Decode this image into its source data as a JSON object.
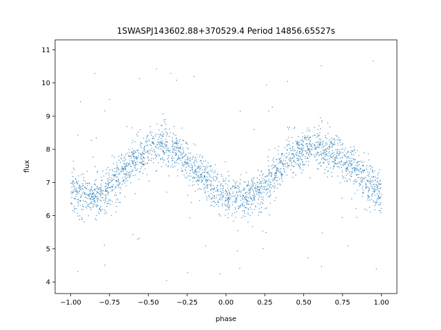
{
  "chart_data": {
    "type": "scatter",
    "title": "1SWASPJ143602.88+370529.4 Period 14856.65527s",
    "xlabel": "phase",
    "ylabel": "flux",
    "xlim": [
      -1.1,
      1.1
    ],
    "ylim": [
      3.65,
      11.3
    ],
    "xticks": [
      -1.0,
      -0.75,
      -0.5,
      -0.25,
      0.0,
      0.25,
      0.5,
      0.75,
      1.0
    ],
    "xtick_labels": [
      "−1.00",
      "−0.75",
      "−0.50",
      "−0.25",
      "0.00",
      "0.25",
      "0.50",
      "0.75",
      "1.00"
    ],
    "yticks": [
      4,
      5,
      6,
      7,
      8,
      9,
      10,
      11
    ],
    "ytick_labels": [
      "4",
      "5",
      "6",
      "7",
      "8",
      "9",
      "10",
      "11"
    ],
    "grid": false,
    "legend": false,
    "marker_color": "#1f77b4",
    "series": [
      {
        "phase": [
          -1.0,
          -0.9,
          -0.8,
          -0.7,
          -0.6,
          -0.5,
          -0.4,
          -0.3,
          -0.2,
          -0.1,
          0.0,
          0.1,
          0.2,
          0.3,
          0.4,
          0.5,
          0.6,
          0.7,
          0.8,
          0.9,
          1.0
        ],
        "flux_mean": [
          6.8,
          6.5,
          6.6,
          7.1,
          7.7,
          8.0,
          8.1,
          7.9,
          7.4,
          6.9,
          6.6,
          6.5,
          6.7,
          7.2,
          7.8,
          8.0,
          8.1,
          7.9,
          7.5,
          7.0,
          6.7
        ],
        "flux_spread": 0.45,
        "points_shown": 2600,
        "outlier_range": [
          4.0,
          10.7
        ]
      }
    ]
  }
}
